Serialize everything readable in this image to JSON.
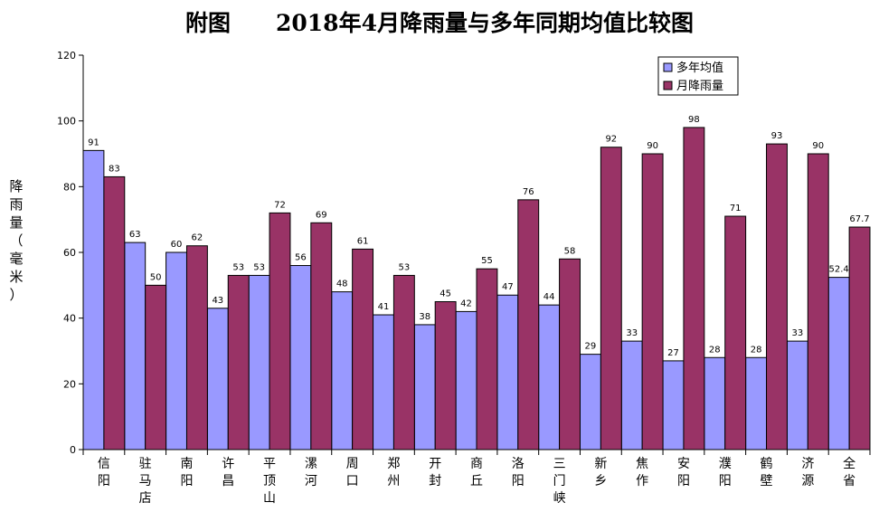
{
  "chart_data": {
    "type": "bar",
    "title": "附图　　2018年4月降雨量与多年同期均值比较图",
    "ylabel": "降雨量（毫米）",
    "ylim": [
      0,
      120
    ],
    "yticks": [
      0,
      20,
      40,
      60,
      80,
      100,
      120
    ],
    "legend_position": "top-right",
    "categories": [
      "信阳",
      "驻马店",
      "南阳",
      "许昌",
      "平顶山",
      "漯河",
      "周口",
      "郑州",
      "开封",
      "商丘",
      "洛阳",
      "三门峡",
      "新乡",
      "焦作",
      "安阳",
      "濮阳",
      "鹤壁",
      "济源",
      "全省"
    ],
    "series": [
      {
        "name": "多年均值",
        "color": "#9999ff",
        "values": [
          91,
          63,
          60,
          43,
          53,
          56,
          48,
          41,
          38,
          42,
          47,
          44,
          29,
          33,
          27,
          28,
          28,
          33,
          52.4
        ],
        "labels": [
          "91",
          "63",
          "60",
          "43",
          "53",
          "56",
          "48",
          "41",
          "38",
          "42",
          "47",
          "44",
          "29",
          "33",
          "27",
          "28",
          "28",
          "33",
          "52.4"
        ]
      },
      {
        "name": "月降雨量",
        "color": "#993366",
        "values": [
          83,
          50,
          62,
          53,
          72,
          69,
          61,
          53,
          45,
          55,
          76,
          58,
          92,
          90,
          98,
          71,
          93,
          90,
          67.7
        ],
        "labels": [
          "83",
          "50",
          "62",
          "53",
          "72",
          "69",
          "61",
          "53",
          "45",
          "55",
          "76",
          "58",
          "92",
          "90",
          "98",
          "71",
          "93",
          "90",
          "67.7"
        ]
      }
    ]
  }
}
